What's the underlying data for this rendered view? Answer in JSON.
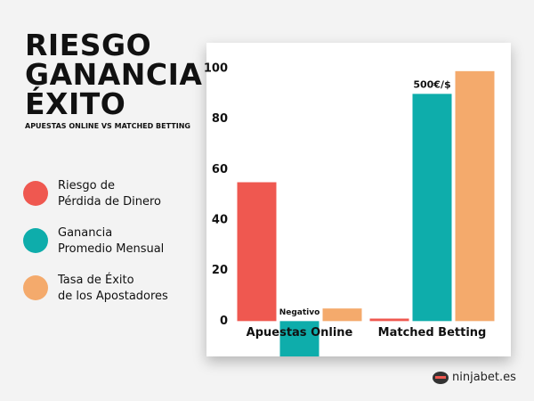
{
  "chart_data": {
    "type": "bar",
    "title": "RIESGO\nGANANCIA\nÉXITO",
    "subtitle": "APUESTAS ONLINE VS MATCHED BETTING",
    "categories": [
      "Apuestas Online",
      "Matched Betting"
    ],
    "series": [
      {
        "name": "Riesgo de\nPérdida de Dinero",
        "color": "#ef5850",
        "values": [
          55,
          1
        ]
      },
      {
        "name": "Ganancia\nPromedio Mensual",
        "color": "#0eadab",
        "values": [
          -14,
          90
        ]
      },
      {
        "name": "Tasa de Éxito\nde los Apostadores",
        "color": "#f4aa6c",
        "values": [
          5,
          99
        ]
      }
    ],
    "annotations": [
      {
        "text": "Negativo",
        "category": "Apuestas Online",
        "series": "Ganancia\nPromedio Mensual"
      },
      {
        "text": "500€/$",
        "category": "Matched Betting",
        "series": "Ganancia\nPromedio Mensual"
      }
    ],
    "ylim": [
      -14,
      100
    ],
    "yticks": [
      0,
      20,
      40,
      60,
      80,
      100
    ],
    "grid": false,
    "brand": "ninjabet.es"
  }
}
